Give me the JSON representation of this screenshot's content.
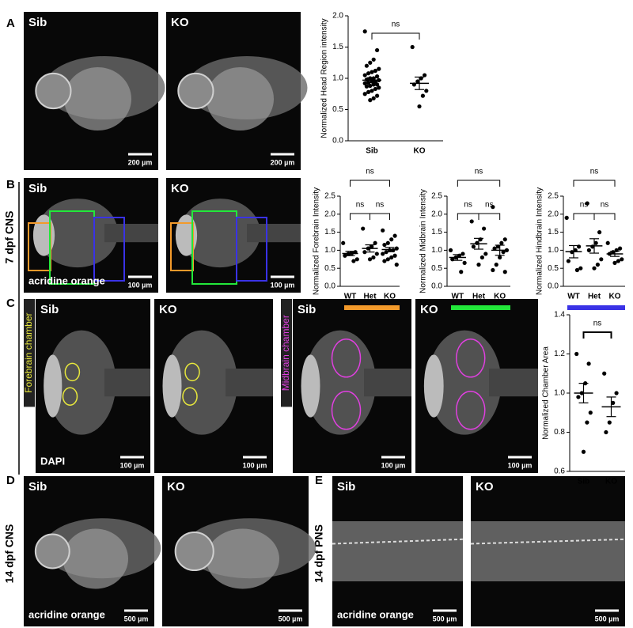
{
  "panel_labels": [
    "A",
    "B",
    "C",
    "D",
    "E"
  ],
  "side_labels": [
    "7 dpf CNS",
    "14 dpf CNS",
    "14 dpf PNS"
  ],
  "images": [
    {
      "label": "Sib",
      "scale_bar": "200 µm"
    },
    {
      "label": "KO",
      "scale_bar": "200 µm"
    },
    {
      "label": "Sib",
      "scale_bar": "100 µm",
      "stain": "acridine orange"
    },
    {
      "label": "KO",
      "scale_bar": "100 µm"
    },
    {
      "label": "Sib",
      "scale_bar": "100 µm",
      "stain": "DAPI",
      "chamber": "Forebrain chamber",
      "chamber_color": "#e8e83c"
    },
    {
      "label": "KO",
      "scale_bar": "100 µm"
    },
    {
      "label": "Sib",
      "scale_bar": "100 µm",
      "chamber": "Midbrain chamber",
      "chamber_color": "#e040e0"
    },
    {
      "label": "KO",
      "scale_bar": "100 µm"
    },
    {
      "label": "Sib",
      "scale_bar": "500 µm",
      "stain": "acridine orange"
    },
    {
      "label": "KO",
      "scale_bar": "500 µm"
    },
    {
      "label": "Sib",
      "scale_bar": "500 µm",
      "stain": "acridine orange"
    },
    {
      "label": "KO",
      "scale_bar": "500 µm"
    }
  ],
  "chart_data": [
    {
      "type": "dotplot",
      "y_label": "Normalized Head Region intensity",
      "ylim": [
        0,
        2
      ],
      "yticks": [
        {
          "value": 0,
          "label": "0.0"
        },
        0.5,
        {
          "value": 1,
          "label": "1.0"
        },
        1.5,
        {
          "value": 2,
          "label": "2.0"
        }
      ],
      "groups": [
        {
          "name": "Sib",
          "values": [
            1.75,
            1.45,
            1.3,
            1.25,
            1.2,
            1.15,
            1.12,
            1.1,
            1.08,
            1.05,
            1.03,
            1.0,
            1.0,
            0.98,
            0.97,
            0.95,
            0.95,
            0.93,
            0.92,
            0.9,
            0.9,
            0.88,
            0.87,
            0.85,
            0.83,
            0.8,
            0.78,
            0.75,
            0.72,
            0.68,
            0.65
          ],
          "mean": 0.97,
          "sem": 0.04
        },
        {
          "name": "KO",
          "values": [
            1.5,
            1.05,
            1.0,
            0.95,
            0.9,
            0.8,
            0.72,
            0.55
          ],
          "mean": 0.92,
          "sem": 0.1
        }
      ],
      "comparisons": [
        {
          "pair": [
            0,
            1
          ],
          "label": "ns"
        }
      ]
    },
    {
      "type": "dotplot",
      "y_label": "Normalized Forebrain Intensity",
      "underline_color": "#f39a2b",
      "ylim": [
        0,
        2.5
      ],
      "yticks": [
        {
          "value": 0,
          "label": "0.0"
        },
        0.5,
        {
          "value": 1,
          "label": "1.0"
        },
        1.5,
        {
          "value": 2,
          "label": "2.0"
        },
        2.5
      ],
      "groups": [
        {
          "name": "WT",
          "values": [
            1.2,
            0.95,
            0.92,
            0.9,
            0.85,
            0.75,
            0.7
          ],
          "mean": 0.91,
          "sem": 0.06
        },
        {
          "name": "Het",
          "values": [
            1.6,
            1.2,
            1.1,
            1.05,
            0.95,
            0.9,
            0.8,
            0.75
          ],
          "mean": 1.05,
          "sem": 0.1
        },
        {
          "name": "KO",
          "values": [
            1.55,
            1.4,
            1.3,
            1.2,
            1.15,
            1.05,
            1.0,
            1.0,
            0.95,
            0.9,
            0.85,
            0.8,
            0.75,
            0.7,
            0.6
          ],
          "mean": 1.02,
          "sem": 0.06
        }
      ],
      "comparisons": [
        {
          "pair": [
            0,
            1
          ],
          "label": "ns"
        },
        {
          "pair": [
            1,
            2
          ],
          "label": "ns"
        },
        {
          "pair": [
            0,
            2
          ],
          "label": "ns"
        }
      ]
    },
    {
      "type": "dotplot",
      "y_label": "Normalized Midbrain Intensity",
      "underline_color": "#22e83a",
      "ylim": [
        0,
        2.5
      ],
      "yticks": [
        {
          "value": 0,
          "label": "0.0"
        },
        0.5,
        {
          "value": 1,
          "label": "1.0"
        },
        1.5,
        {
          "value": 2,
          "label": "2.0"
        },
        2.5
      ],
      "groups": [
        {
          "name": "WT",
          "values": [
            1.0,
            0.9,
            0.85,
            0.8,
            0.75,
            0.65,
            0.4
          ],
          "mean": 0.8,
          "sem": 0.08
        },
        {
          "name": "Het",
          "values": [
            1.8,
            1.6,
            1.3,
            1.2,
            1.1,
            0.9,
            0.8,
            0.6
          ],
          "mean": 1.18,
          "sem": 0.15
        },
        {
          "name": "KO",
          "values": [
            2.2,
            1.3,
            1.2,
            1.1,
            1.05,
            1.0,
            0.95,
            0.8,
            0.6,
            0.45,
            0.4
          ],
          "mean": 1.0,
          "sem": 0.14
        }
      ],
      "comparisons": [
        {
          "pair": [
            0,
            1
          ],
          "label": "ns"
        },
        {
          "pair": [
            1,
            2
          ],
          "label": "ns"
        },
        {
          "pair": [
            0,
            2
          ],
          "label": "ns"
        }
      ]
    },
    {
      "type": "dotplot",
      "y_label": "Normalized Hindbrain Intensity",
      "underline_color": "#3a32e6",
      "ylim": [
        0,
        2.5
      ],
      "yticks": [
        {
          "value": 0,
          "label": "0.0"
        },
        0.5,
        {
          "value": 1,
          "label": "1.0"
        },
        1.5,
        {
          "value": 2,
          "label": "2.0"
        },
        2.5
      ],
      "groups": [
        {
          "name": "WT",
          "values": [
            1.9,
            1.1,
            1.0,
            0.95,
            0.7,
            0.5,
            0.45
          ],
          "mean": 0.96,
          "sem": 0.17
        },
        {
          "name": "Het",
          "values": [
            2.3,
            1.5,
            1.2,
            1.1,
            1.0,
            0.75,
            0.6,
            0.5
          ],
          "mean": 1.12,
          "sem": 0.2
        },
        {
          "name": "KO",
          "values": [
            1.2,
            1.05,
            1.0,
            0.95,
            0.9,
            0.75,
            0.7,
            0.65
          ],
          "mean": 0.9,
          "sem": 0.07
        }
      ],
      "comparisons": [
        {
          "pair": [
            0,
            1
          ],
          "label": "ns"
        },
        {
          "pair": [
            1,
            2
          ],
          "label": "ns"
        },
        {
          "pair": [
            0,
            2
          ],
          "label": "ns"
        }
      ]
    },
    {
      "type": "dotplot",
      "y_label": "Normalized Chamber Area",
      "ylim": [
        0.6,
        1.4
      ],
      "yticks": [
        0.6,
        0.8,
        {
          "value": 1,
          "label": "1.0"
        },
        1.2,
        1.4
      ],
      "groups": [
        {
          "name": "Sib",
          "values": [
            1.2,
            1.15,
            1.05,
            1.0,
            0.98,
            0.9,
            0.85,
            0.7
          ],
          "mean": 1.0,
          "sem": 0.05
        },
        {
          "name": "KO",
          "values": [
            1.1,
            1.0,
            0.95,
            0.85,
            0.8
          ],
          "mean": 0.93,
          "sem": 0.05
        }
      ],
      "comparisons": [
        {
          "pair": [
            0,
            1
          ],
          "label": "ns"
        }
      ]
    }
  ]
}
